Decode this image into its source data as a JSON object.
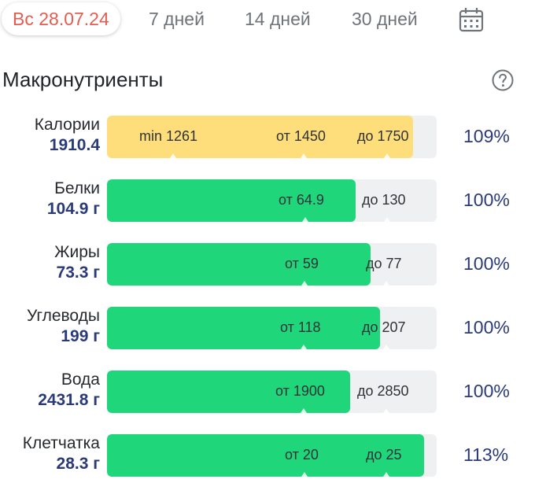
{
  "colors": {
    "accent": "#e35d50",
    "green": "#1fd67a",
    "yellow": "#fede7b",
    "value": "#2a3a78"
  },
  "tabs": [
    {
      "label": "Вс 28.07.24",
      "active": true
    },
    {
      "label": "7 дней"
    },
    {
      "label": "14 дней"
    },
    {
      "label": "30 дней"
    }
  ],
  "calendar_icon": "calendar-icon",
  "section": {
    "title": "Макронутриенты",
    "help_icon": "help-circle-icon"
  },
  "rows": [
    {
      "label": "Калории",
      "value": "1910.4",
      "fill": 0.928,
      "color": "yellow",
      "marks": [
        "min 1261",
        "от 1450",
        "до 1750"
      ],
      "percent": "109%"
    },
    {
      "label": "Белки",
      "value": "104.9 г",
      "fill": 0.754,
      "color": "green",
      "marks": [
        "от 64.9",
        "до 130"
      ],
      "percent": "100%"
    },
    {
      "label": "Жиры",
      "value": "73.3 г",
      "fill": 0.799,
      "color": "green",
      "marks": [
        "от 59",
        "до 77"
      ],
      "percent": "100%"
    },
    {
      "label": "Углеводы",
      "value": "199 г",
      "fill": 0.828,
      "color": "green",
      "marks": [
        "от 118",
        "до 207"
      ],
      "percent": "100%"
    },
    {
      "label": "Вода",
      "value": "2431.8 г",
      "fill": 0.737,
      "color": "green",
      "marks": [
        "от 1900",
        "до 2850"
      ],
      "percent": "100%"
    },
    {
      "label": "Клетчатка",
      "value": "28.3 г",
      "fill": 0.962,
      "color": "green",
      "marks": [
        "от 20",
        "до 25"
      ],
      "percent": "113%"
    }
  ]
}
